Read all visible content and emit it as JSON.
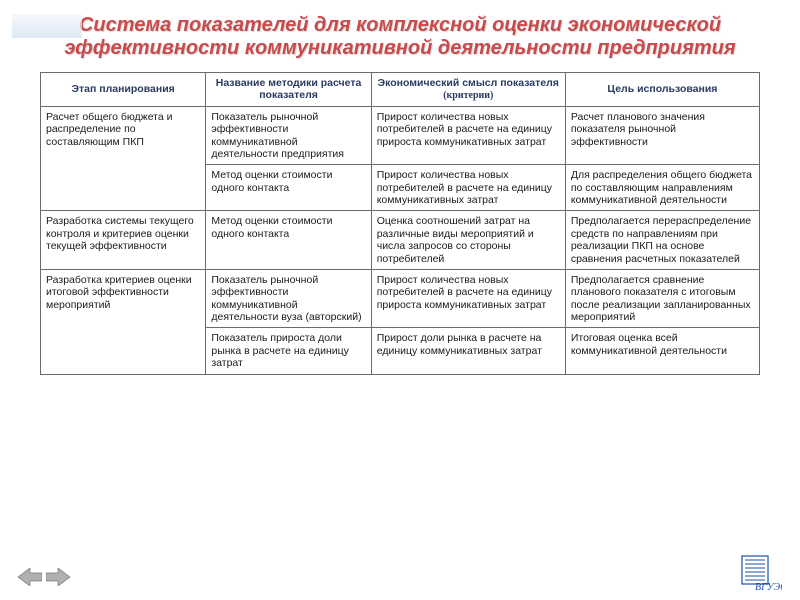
{
  "title": "Система показателей для комплексной оценки экономической эффективности коммуникативной деятельности предприятия",
  "headers": {
    "c1": "Этап планирования",
    "c2": "Название методики расчета показателя",
    "c3_main": "Экономический смысл показателя",
    "c3_sub": "(критерии)",
    "c4": "Цель использования"
  },
  "rows": [
    {
      "stage": "Расчет общего бюджета и распределение по составляющим ПКП",
      "method": "Показатель рыночной эффективности коммуникативной деятельности предприятия",
      "meaning": "Прирост количества новых потребителей в расчете на единицу прироста коммуникативных затрат",
      "goal": "Расчет планового значения показателя рыночной эффективности",
      "stage_rowspan": 2
    },
    {
      "method": "Метод оценки стоимости одного контакта",
      "meaning": "Прирост количества новых потребителей в расчете на единицу коммуникативных затрат",
      "goal": "Для распределения общего бюджета по составляющим направлениям коммуникативной деятельности"
    },
    {
      "stage": "Разработка системы текущего контроля и критериев оценки текущей эффективности",
      "method": "Метод оценки стоимости одного контакта",
      "meaning": "Оценка соотношений затрат на различные виды мероприятий и числа запросов со стороны потребителей",
      "goal": "Предполагается перераспределение средств по направлениям при реализации ПКП на основе сравнения расчетных показателей",
      "stage_rowspan": 1
    },
    {
      "stage": "Разработка критериев оценки итоговой эффективности мероприятий",
      "method": "Показатель рыночной эффективности коммуникативной деятельности вуза (авторский)",
      "meaning": "Прирост количества новых потребителей в расчете на единицу прироста коммуникативных затрат",
      "goal": "Предполагается сравнение планового показателя с итоговым после реализации запланированных мероприятий",
      "stage_rowspan": 2
    },
    {
      "method": "Показатель прироста доли рынка в расчете на единицу затрат",
      "meaning": "Прирост доли рынка в расчете на единицу коммуникативных затрат",
      "goal": "Итоговая оценка всей коммуникативной деятельности"
    }
  ],
  "nav": {
    "prev_name": "prev-arrow-icon",
    "next_name": "next-arrow-icon"
  },
  "logo_text": "ВГУЭС",
  "colors": {
    "title": "#c94a4a",
    "header_text": "#2a3a63",
    "border": "#6b6b6b",
    "arrow_fill": "#b0b0b0",
    "arrow_stroke": "#7a7a7a",
    "logo": "#1f4fad"
  }
}
